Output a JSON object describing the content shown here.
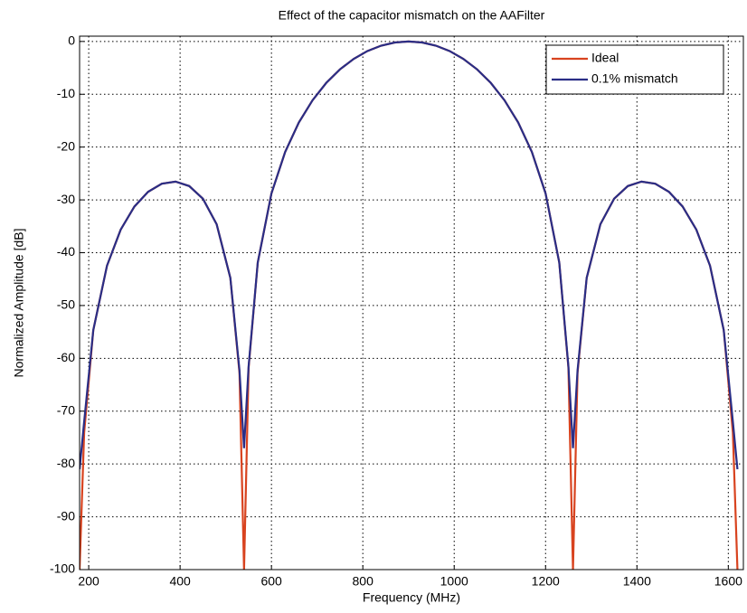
{
  "chart_data": {
    "type": "line",
    "title": "Effect of the capacitor mismatch on the AAFilter",
    "xlabel": "Frequency (MHz)",
    "ylabel": "Normalized Amplitude [dB]",
    "x": [
      180,
      190,
      210,
      240,
      270,
      300,
      330,
      360,
      390,
      420,
      450,
      480,
      510,
      530,
      540,
      550,
      570,
      600,
      630,
      660,
      690,
      720,
      750,
      780,
      810,
      840,
      870,
      900,
      930,
      960,
      990,
      1020,
      1050,
      1080,
      1110,
      1140,
      1170,
      1200,
      1230,
      1250,
      1260,
      1270,
      1290,
      1320,
      1350,
      1380,
      1410,
      1440,
      1470,
      1500,
      1530,
      1560,
      1590,
      1610,
      1620
    ],
    "series": [
      {
        "name": "Ideal",
        "color": "#d8431f",
        "values": [
          -100,
          -74.07,
          -54.67,
          -42.46,
          -35.63,
          -31.26,
          -28.47,
          -26.93,
          -26.54,
          -27.38,
          -29.78,
          -34.61,
          -44.76,
          -62.75,
          -100,
          -61.78,
          -41.86,
          -28.76,
          -20.91,
          -15.34,
          -11.13,
          -7.84,
          -5.28,
          -3.3,
          -1.82,
          -0.8,
          -0.2,
          0,
          -0.2,
          -0.8,
          -1.82,
          -3.3,
          -5.28,
          -7.84,
          -11.13,
          -15.34,
          -20.91,
          -28.76,
          -41.86,
          -61.78,
          -100,
          -62.75,
          -44.76,
          -34.61,
          -29.78,
          -27.38,
          -26.54,
          -26.93,
          -28.47,
          -31.26,
          -35.63,
          -42.46,
          -54.67,
          -74.07,
          -100
        ]
      },
      {
        "name": "0.1% mismatch",
        "color": "#2a2e86",
        "values": [
          -81,
          -72,
          -54.67,
          -42.46,
          -35.63,
          -31.26,
          -28.47,
          -26.93,
          -26.54,
          -27.38,
          -29.78,
          -34.61,
          -44.76,
          -62.3,
          -77,
          -61.5,
          -41.86,
          -28.76,
          -20.91,
          -15.34,
          -11.13,
          -7.84,
          -5.28,
          -3.3,
          -1.82,
          -0.8,
          -0.2,
          0,
          -0.2,
          -0.8,
          -1.82,
          -3.3,
          -5.28,
          -7.84,
          -11.13,
          -15.34,
          -20.91,
          -28.76,
          -41.86,
          -61.5,
          -77,
          -62.3,
          -44.76,
          -34.61,
          -29.78,
          -27.38,
          -26.54,
          -26.93,
          -28.47,
          -31.26,
          -35.63,
          -42.46,
          -54.67,
          -72,
          -81
        ]
      }
    ],
    "xlim": [
      180,
      1633
    ],
    "xticks": [
      200,
      400,
      600,
      800,
      1000,
      1200,
      1400,
      1600
    ],
    "ylim": [
      -100,
      1
    ],
    "yticks": [
      -100,
      -90,
      -80,
      -70,
      -60,
      -50,
      -40,
      -30,
      -20,
      -10,
      0
    ],
    "grid": true,
    "legend": "upper right"
  }
}
